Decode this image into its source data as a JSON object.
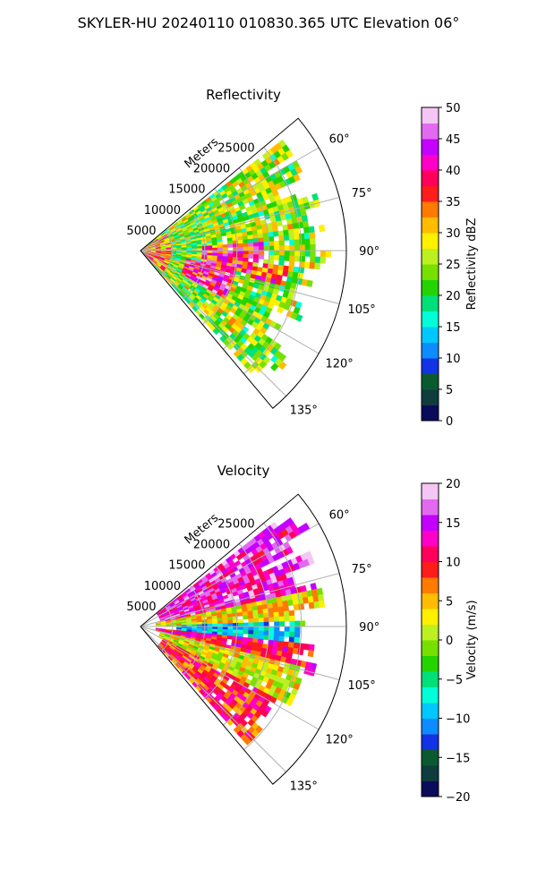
{
  "figure": {
    "suptitle": "SKYLER-HU  20240110  010830.365 UTC Elevation 06°"
  },
  "chart_data": [
    {
      "type": "heatmap",
      "subtype": "polar-sector-ppi",
      "title": "Reflectivity",
      "range_label": "Meters",
      "range_ticks": [
        5000,
        10000,
        15000,
        20000,
        25000
      ],
      "range_tick_labels": [
        "5000",
        "10000",
        "15000",
        "20000",
        "25000"
      ],
      "range_max": 32000,
      "azimuth_range_deg": [
        50,
        140
      ],
      "azimuth_ticks_deg": [
        60,
        75,
        90,
        105,
        120,
        135
      ],
      "azimuth_tick_labels": [
        "60°",
        "75°",
        "90°",
        "105°",
        "120°",
        "135°"
      ],
      "grid": true,
      "colorbar": {
        "label": "Reflectivity dBZ",
        "min": 0,
        "max": 50,
        "ticks": [
          0,
          5,
          10,
          15,
          20,
          25,
          30,
          35,
          40,
          45,
          50
        ],
        "tick_labels": [
          "0",
          "5",
          "10",
          "15",
          "20",
          "25",
          "30",
          "35",
          "40",
          "45",
          "50"
        ],
        "colors": [
          "#0b0b5c",
          "#0f3d3d",
          "#0a5a30",
          "#1232e6",
          "#0c8cff",
          "#00c8ff",
          "#00ffd8",
          "#00e07a",
          "#24d400",
          "#78e000",
          "#bdf020",
          "#ffef00",
          "#ffbc00",
          "#ff7a00",
          "#ff1c1c",
          "#ff005a",
          "#ff00c8",
          "#c400ff",
          "#e26af0",
          "#f5c6f5"
        ]
      },
      "features": [
        {
          "name": "background_echo",
          "az": [
            52,
            138
          ],
          "r": [
            0,
            30000
          ],
          "value": 24
        },
        {
          "name": "near_range_clutter",
          "az": [
            55,
            130
          ],
          "r": [
            0,
            4000
          ],
          "value": 33
        },
        {
          "name": "core_band_east",
          "az": [
            86,
            100
          ],
          "r": [
            9000,
            19000
          ],
          "value": 38
        },
        {
          "name": "core_band_south",
          "az": [
            100,
            118
          ],
          "r": [
            7000,
            15000
          ],
          "value": 40
        },
        {
          "name": "core_band_far",
          "az": [
            95,
            103
          ],
          "r": [
            17000,
            23000
          ],
          "value": 34
        }
      ]
    },
    {
      "type": "heatmap",
      "subtype": "polar-sector-ppi",
      "title": "Velocity",
      "range_label": "Meters",
      "range_ticks": [
        5000,
        10000,
        15000,
        20000,
        25000
      ],
      "range_tick_labels": [
        "5000",
        "10000",
        "15000",
        "20000",
        "25000"
      ],
      "range_max": 32000,
      "azimuth_range_deg": [
        50,
        140
      ],
      "azimuth_ticks_deg": [
        60,
        75,
        90,
        105,
        120,
        135
      ],
      "azimuth_tick_labels": [
        "60°",
        "75°",
        "90°",
        "105°",
        "120°",
        "135°"
      ],
      "grid": true,
      "colorbar": {
        "label": "Velocity (m/s)",
        "min": -20,
        "max": 20,
        "ticks": [
          -20,
          -15,
          -10,
          -5,
          0,
          5,
          10,
          15,
          20
        ],
        "tick_labels": [
          "−20",
          "−15",
          "−10",
          "−5",
          "0",
          "5",
          "10",
          "15",
          "20"
        ],
        "colors": [
          "#0b0b5c",
          "#0f3d3d",
          "#0a5a30",
          "#1232e6",
          "#0c8cff",
          "#00c8ff",
          "#00ffd8",
          "#00e07a",
          "#24d400",
          "#78e000",
          "#bdf020",
          "#ffef00",
          "#ffbc00",
          "#ff7a00",
          "#ff1c1c",
          "#ff005a",
          "#ff00c8",
          "#c400ff",
          "#e26af0",
          "#f5c6f5"
        ]
      },
      "features": [
        {
          "name": "outbound_north",
          "az": [
            52,
            78
          ],
          "r": [
            3000,
            30000
          ],
          "value": 14
        },
        {
          "name": "transition_north",
          "az": [
            78,
            88
          ],
          "r": [
            2000,
            28000
          ],
          "value": 3
        },
        {
          "name": "inbound_core",
          "az": [
            88,
            96
          ],
          "r": [
            5000,
            24000
          ],
          "value": -9
        },
        {
          "name": "pink_band",
          "az": [
            96,
            104
          ],
          "r": [
            2000,
            28000
          ],
          "value": 11
        },
        {
          "name": "yellow_band",
          "az": [
            104,
            118
          ],
          "r": [
            3000,
            26000
          ],
          "value": 2
        },
        {
          "name": "south_edge",
          "az": [
            118,
            136
          ],
          "r": [
            4000,
            24000
          ],
          "value": 9
        }
      ]
    }
  ]
}
